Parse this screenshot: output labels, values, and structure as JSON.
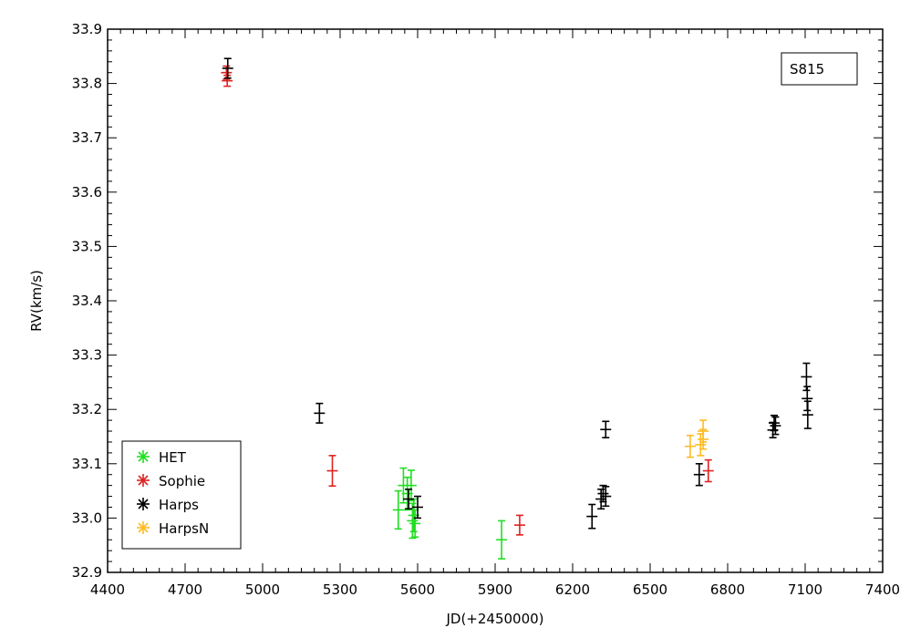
{
  "chart_data": {
    "type": "scatter",
    "xlabel": "JD(+2450000)",
    "ylabel": "RV(km/s)",
    "xlim": [
      4400,
      7400
    ],
    "ylim": [
      32.9,
      33.9
    ],
    "xticks": [
      4400,
      4700,
      5000,
      5300,
      5600,
      5900,
      6200,
      6500,
      6800,
      7100,
      7400
    ],
    "xtick_labels": [
      "4400",
      "4700",
      "5000",
      "5300",
      "5600",
      "5900",
      "6200",
      "6500",
      "6800",
      "7100",
      "7400"
    ],
    "yticks": [
      32.9,
      33.0,
      33.1,
      33.2,
      33.3,
      33.4,
      33.5,
      33.6,
      33.7,
      33.8,
      33.9
    ],
    "ytick_labels": [
      "32.9",
      "33.0",
      "33.1",
      "33.2",
      "33.3",
      "33.4",
      "33.5",
      "33.6",
      "33.7",
      "33.8",
      "33.9"
    ],
    "annotation": "S815",
    "legend_position": "bottom-left",
    "series": [
      {
        "name": "HET",
        "color": "#22dd22",
        "points": [
          {
            "x": 5525,
            "y": 33.015,
            "err": 0.035
          },
          {
            "x": 5545,
            "y": 33.06,
            "err": 0.032
          },
          {
            "x": 5560,
            "y": 33.045,
            "err": 0.03
          },
          {
            "x": 5575,
            "y": 33.06,
            "err": 0.028
          },
          {
            "x": 5580,
            "y": 32.995,
            "err": 0.032
          },
          {
            "x": 5585,
            "y": 33.005,
            "err": 0.03
          },
          {
            "x": 5590,
            "y": 32.99,
            "err": 0.025
          },
          {
            "x": 5925,
            "y": 32.96,
            "err": 0.035
          }
        ]
      },
      {
        "name": "Sophie",
        "color": "#dd2222",
        "points": [
          {
            "x": 4860,
            "y": 33.82,
            "err": 0.012
          },
          {
            "x": 4863,
            "y": 33.805,
            "err": 0.01
          },
          {
            "x": 5270,
            "y": 33.087,
            "err": 0.028
          },
          {
            "x": 5995,
            "y": 32.987,
            "err": 0.018
          },
          {
            "x": 6725,
            "y": 33.087,
            "err": 0.02
          }
        ]
      },
      {
        "name": "Harps",
        "color": "#000000",
        "points": [
          {
            "x": 4865,
            "y": 33.828,
            "err": 0.018
          },
          {
            "x": 5220,
            "y": 33.193,
            "err": 0.018
          },
          {
            "x": 5565,
            "y": 33.035,
            "err": 0.018
          },
          {
            "x": 5600,
            "y": 33.02,
            "err": 0.02
          },
          {
            "x": 6275,
            "y": 33.003,
            "err": 0.022
          },
          {
            "x": 6310,
            "y": 33.035,
            "err": 0.018
          },
          {
            "x": 6318,
            "y": 33.045,
            "err": 0.015
          },
          {
            "x": 6328,
            "y": 33.04,
            "err": 0.018
          },
          {
            "x": 6328,
            "y": 33.163,
            "err": 0.015
          },
          {
            "x": 6690,
            "y": 33.08,
            "err": 0.02
          },
          {
            "x": 6975,
            "y": 33.162,
            "err": 0.014
          },
          {
            "x": 6980,
            "y": 33.175,
            "err": 0.014
          },
          {
            "x": 6985,
            "y": 33.17,
            "err": 0.016
          },
          {
            "x": 7105,
            "y": 33.26,
            "err": 0.025
          },
          {
            "x": 7108,
            "y": 33.22,
            "err": 0.022
          },
          {
            "x": 7110,
            "y": 33.19,
            "err": 0.025
          }
        ]
      },
      {
        "name": "HarpsN",
        "color": "#ffbb22",
        "points": [
          {
            "x": 6655,
            "y": 33.132,
            "err": 0.02
          },
          {
            "x": 6695,
            "y": 33.135,
            "err": 0.02
          },
          {
            "x": 6705,
            "y": 33.16,
            "err": 0.02
          },
          {
            "x": 6705,
            "y": 33.145,
            "err": 0.018
          }
        ]
      }
    ]
  }
}
